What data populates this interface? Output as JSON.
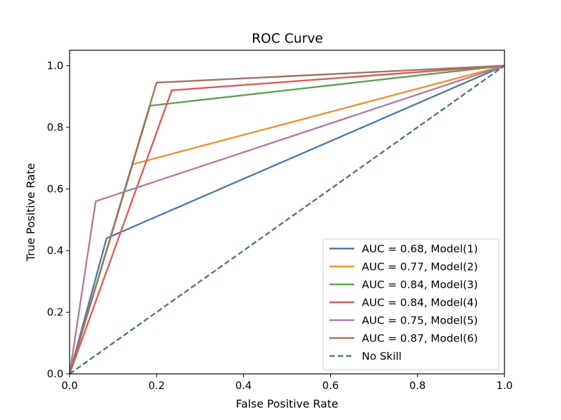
{
  "chart_data": {
    "type": "line",
    "title": "ROC Curve",
    "xlabel": "False Positive Rate",
    "ylabel": "True Positive Rate",
    "xlim": [
      0.0,
      1.0
    ],
    "ylim": [
      0.0,
      1.05
    ],
    "xticks": [
      0.0,
      0.2,
      0.4,
      0.6,
      0.8,
      1.0
    ],
    "yticks": [
      0.0,
      0.2,
      0.4,
      0.6,
      0.8,
      1.0
    ],
    "tick_labels_x": [
      "0.0",
      "0.2",
      "0.4",
      "0.6",
      "0.8",
      "1.0"
    ],
    "tick_labels_y": [
      "0.0",
      "0.2",
      "0.4",
      "0.6",
      "0.8",
      "1.0"
    ],
    "grid": false,
    "legend_position": "lower-right",
    "series": [
      {
        "name": "AUC = 0.68, Model(1)",
        "color": "#4e79a7",
        "dash": "solid",
        "x": [
          0.0,
          0.085,
          1.0
        ],
        "y": [
          0.0,
          0.44,
          1.0
        ]
      },
      {
        "name": "AUC = 0.77, Model(2)",
        "color": "#f28e2b",
        "dash": "solid",
        "x": [
          0.0,
          0.145,
          1.0
        ],
        "y": [
          0.0,
          0.68,
          1.0
        ]
      },
      {
        "name": "AUC = 0.84, Model(3)",
        "color": "#59a14f",
        "dash": "solid",
        "x": [
          0.0,
          0.185,
          1.0
        ],
        "y": [
          0.0,
          0.87,
          1.0
        ]
      },
      {
        "name": "AUC = 0.84, Model(4)",
        "color": "#e15759",
        "dash": "solid",
        "x": [
          0.0,
          0.235,
          1.0
        ],
        "y": [
          0.0,
          0.92,
          1.0
        ]
      },
      {
        "name": "AUC = 0.75, Model(5)",
        "color": "#b07aa1",
        "dash": "solid",
        "x": [
          0.0,
          0.06,
          1.0
        ],
        "y": [
          0.0,
          0.56,
          1.0
        ]
      },
      {
        "name": "AUC = 0.87, Model(6)",
        "color": "#9c755f",
        "dash": "solid",
        "x": [
          0.0,
          0.2,
          1.0
        ],
        "y": [
          0.0,
          0.945,
          1.0
        ]
      },
      {
        "name": "No Skill",
        "color": "#4e7d5b",
        "dash": "dashed",
        "x": [
          0.0,
          1.0
        ],
        "y": [
          0.0,
          1.0
        ]
      }
    ]
  }
}
